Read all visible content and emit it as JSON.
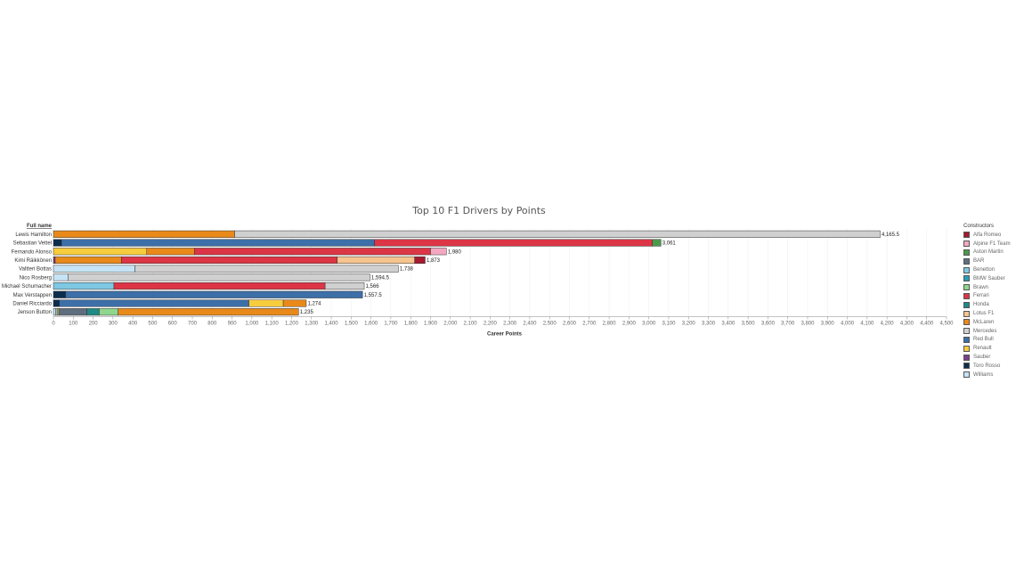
{
  "chart_data": {
    "type": "bar",
    "orientation": "horizontal",
    "stacked": true,
    "title": "Top 10 F1 Drivers by Points",
    "row_header": "Full name",
    "xlabel": "Career Points",
    "xlim": [
      0,
      4500
    ],
    "x_ticks": [
      0,
      100,
      200,
      300,
      400,
      500,
      600,
      700,
      800,
      900,
      1000,
      1100,
      1200,
      1300,
      1400,
      1500,
      1600,
      1700,
      1800,
      1900,
      2000,
      2100,
      2200,
      2300,
      2400,
      2500,
      2600,
      2700,
      2800,
      2900,
      3000,
      3100,
      3200,
      3300,
      3400,
      3500,
      3600,
      3700,
      3800,
      3900,
      4000,
      4100,
      4200,
      4300,
      4400,
      4500
    ],
    "x_tick_labels": [
      "0",
      "100",
      "200",
      "300",
      "400",
      "500",
      "600",
      "700",
      "800",
      "900",
      "1,000",
      "1,100",
      "1,200",
      "1,300",
      "1,400",
      "1,500",
      "1,600",
      "1,700",
      "1,800",
      "1,900",
      "2,000",
      "2,100",
      "2,200",
      "2,300",
      "2,400",
      "2,500",
      "2,600",
      "2,700",
      "2,800",
      "2,900",
      "3,000",
      "3,100",
      "3,200",
      "3,300",
      "3,400",
      "3,500",
      "3,600",
      "3,700",
      "3,800",
      "3,900",
      "4,000",
      "4,100",
      "4,200",
      "4,300",
      "4,400",
      "4,500"
    ],
    "grid": true,
    "legend_title": "Constructors",
    "legend_position": "right",
    "constructors": [
      {
        "name": "Alfa Romeo",
        "color": "#a6192e"
      },
      {
        "name": "Alpine F1 Team",
        "color": "#f4a7c0"
      },
      {
        "name": "Aston Martin",
        "color": "#4a9a4a"
      },
      {
        "name": "BAR",
        "color": "#5e6e7e"
      },
      {
        "name": "Benetton",
        "color": "#7ec8e3"
      },
      {
        "name": "BMW Sauber",
        "color": "#2a9bb8"
      },
      {
        "name": "Brawn",
        "color": "#8fd68f"
      },
      {
        "name": "Ferrari",
        "color": "#dc3545"
      },
      {
        "name": "Honda",
        "color": "#1f8a86"
      },
      {
        "name": "Lotus F1",
        "color": "#f6c48e"
      },
      {
        "name": "McLaren",
        "color": "#e8891a"
      },
      {
        "name": "Mercedes",
        "color": "#d0d0d0"
      },
      {
        "name": "Red Bull",
        "color": "#3d6fa8"
      },
      {
        "name": "Renault",
        "color": "#f7cc3d"
      },
      {
        "name": "Sauber",
        "color": "#7b3f8c"
      },
      {
        "name": "Toro Rosso",
        "color": "#0d2d4d"
      },
      {
        "name": "Williams",
        "color": "#c6e3f5"
      }
    ],
    "drivers": [
      {
        "name": "Lewis Hamilton",
        "total_label": "4,165.5",
        "segments": [
          {
            "constructor": "McLaren",
            "value": 913
          },
          {
            "constructor": "Mercedes",
            "value": 3252.5
          }
        ]
      },
      {
        "name": "Sebastian Vettel",
        "total_label": "3,061",
        "segments": [
          {
            "constructor": "Toro Rosso",
            "value": 41
          },
          {
            "constructor": "Red Bull",
            "value": 1577
          },
          {
            "constructor": "Ferrari",
            "value": 1400
          },
          {
            "constructor": "Aston Martin",
            "value": 43
          }
        ]
      },
      {
        "name": "Fernando Alonso",
        "total_label": "1,980",
        "segments": [
          {
            "constructor": "Renault",
            "value": 470
          },
          {
            "constructor": "McLaren",
            "value": 240
          },
          {
            "constructor": "Ferrari",
            "value": 1190
          },
          {
            "constructor": "Alpine F1 Team",
            "value": 80
          }
        ]
      },
      {
        "name": "Kimi Räikkönen",
        "total_label": "1,873",
        "segments": [
          {
            "constructor": "Sauber",
            "value": 9
          },
          {
            "constructor": "McLaren",
            "value": 333
          },
          {
            "constructor": "Ferrari",
            "value": 1088
          },
          {
            "constructor": "Lotus F1",
            "value": 390
          },
          {
            "constructor": "Alfa Romeo",
            "value": 53
          }
        ]
      },
      {
        "name": "Valtteri Bottas",
        "total_label": "1,738",
        "segments": [
          {
            "constructor": "Williams",
            "value": 411
          },
          {
            "constructor": "Mercedes",
            "value": 1327
          }
        ]
      },
      {
        "name": "Nico Rosberg",
        "total_label": "1,594.5",
        "segments": [
          {
            "constructor": "Williams",
            "value": 75
          },
          {
            "constructor": "Mercedes",
            "value": 1519.5
          }
        ]
      },
      {
        "name": "Michael Schumacher",
        "total_label": "1,566",
        "segments": [
          {
            "constructor": "Benetton",
            "value": 305
          },
          {
            "constructor": "Ferrari",
            "value": 1064
          },
          {
            "constructor": "Mercedes",
            "value": 197
          }
        ]
      },
      {
        "name": "Max Verstappen",
        "total_label": "1,557.5",
        "segments": [
          {
            "constructor": "Toro Rosso",
            "value": 62
          },
          {
            "constructor": "Red Bull",
            "value": 1495.5
          }
        ]
      },
      {
        "name": "Daniel Ricciardo",
        "total_label": "1,274",
        "segments": [
          {
            "constructor": "Toro Rosso",
            "value": 30
          },
          {
            "constructor": "Red Bull",
            "value": 955
          },
          {
            "constructor": "Renault",
            "value": 173
          },
          {
            "constructor": "McLaren",
            "value": 116
          }
        ]
      },
      {
        "name": "Jenson Button",
        "total_label": "1,235",
        "segments": [
          {
            "constructor": "Williams",
            "value": 12
          },
          {
            "constructor": "Benetton",
            "value": 7
          },
          {
            "constructor": "Renault",
            "value": 8
          },
          {
            "constructor": "BAR",
            "value": 142
          },
          {
            "constructor": "Honda",
            "value": 62
          },
          {
            "constructor": "Brawn",
            "value": 95
          },
          {
            "constructor": "McLaren",
            "value": 909
          }
        ]
      }
    ]
  }
}
